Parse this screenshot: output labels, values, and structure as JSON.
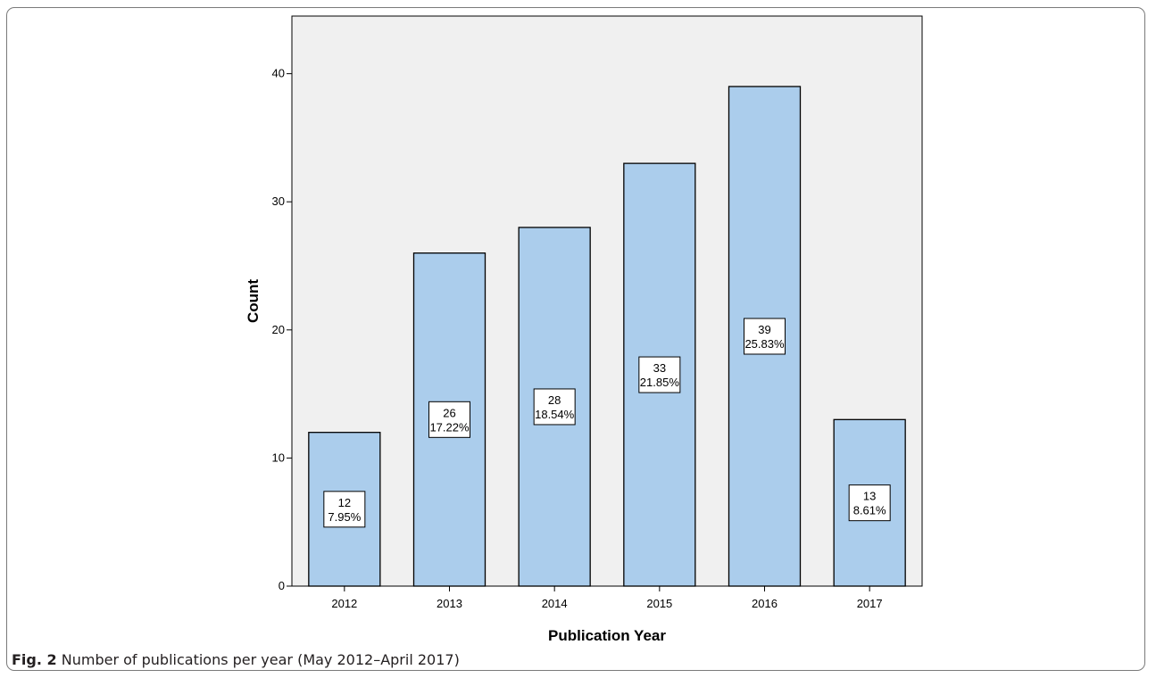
{
  "caption": {
    "label": "Fig. 2",
    "text": "Number of publications per year (May 2012–April 2017)"
  },
  "colors": {
    "bar_fill": "#abcdec",
    "bar_stroke": "#000000",
    "plot_background": "#f0f0f0",
    "label_box": "#ffffff"
  },
  "chart_data": {
    "type": "bar",
    "title": "",
    "xlabel": "Publication Year",
    "ylabel": "Count",
    "categories": [
      "2012",
      "2013",
      "2014",
      "2015",
      "2016",
      "2017"
    ],
    "values": [
      12,
      26,
      28,
      33,
      39,
      13
    ],
    "percent_labels": [
      "7.95%",
      "17.22%",
      "18.54%",
      "21.85%",
      "25.83%",
      "8.61%"
    ],
    "ylim": [
      0,
      44.5
    ],
    "yticks": [
      0,
      10,
      20,
      30,
      40
    ],
    "grid": false,
    "legend": "none"
  }
}
